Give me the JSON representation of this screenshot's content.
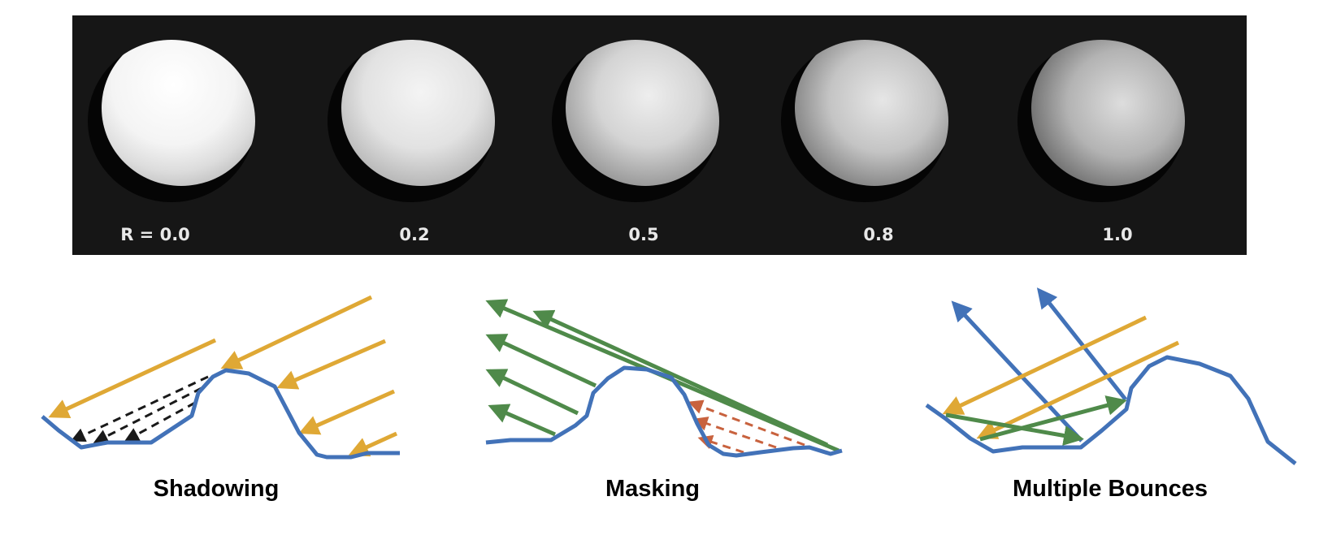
{
  "spheres": [
    {
      "label": "R = 0.0",
      "roughness": 0.0
    },
    {
      "label": "0.2",
      "roughness": 0.2
    },
    {
      "label": "0.5",
      "roughness": 0.5
    },
    {
      "label": "0.8",
      "roughness": 0.8
    },
    {
      "label": "1.0",
      "roughness": 1.0
    }
  ],
  "diagrams": {
    "shadowing": {
      "title": "Shadowing"
    },
    "masking": {
      "title": "Masking"
    },
    "multiple_bounces": {
      "title": "Multiple Bounces"
    }
  },
  "colors": {
    "panel": "#161616",
    "surface": "#4272b8",
    "incoming_light": "#dfa835",
    "outgoing_light": "#4f8a4a",
    "shadow_ray": "#1a1a1a",
    "masked_ray": "#c8623e",
    "reflected_blue": "#4272b8"
  }
}
